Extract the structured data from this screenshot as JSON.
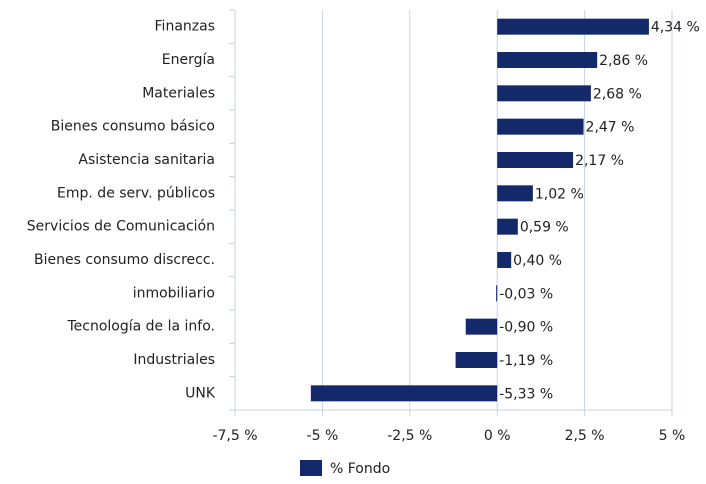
{
  "chart_data": {
    "type": "barh",
    "categories": [
      "Finanzas",
      "Energía",
      "Materiales",
      "Bienes consumo básico",
      "Asistencia sanitaria",
      "Emp. de serv. públicos",
      "Servicios de Comunicación",
      "Bienes consumo discrecc.",
      "inmobiliario",
      "Tecnología de la info.",
      "Industriales",
      "UNK"
    ],
    "series": [
      {
        "name": "% Fondo",
        "color": "#14296a",
        "values": [
          4.34,
          2.86,
          2.68,
          2.47,
          2.17,
          1.02,
          0.59,
          0.4,
          -0.03,
          -0.9,
          -1.19,
          -5.33
        ],
        "value_labels": [
          "4,34 %",
          "2,86 %",
          "2,68 %",
          "2,47 %",
          "2,17 %",
          "1,02 %",
          "0,59 %",
          "0,40 %",
          "-0,03 %",
          "-0,90 %",
          "-1,19 %",
          "-5,33 %"
        ]
      }
    ],
    "xlim": [
      -7.5,
      5
    ],
    "xticks": [
      {
        "value": -7.5,
        "label": "-7,5 %"
      },
      {
        "value": -5,
        "label": "-5 %"
      },
      {
        "value": -2.5,
        "label": "-2,5 %"
      },
      {
        "value": 0,
        "label": "0 %"
      },
      {
        "value": 2.5,
        "label": "2,5 %"
      },
      {
        "value": 5,
        "label": "5 %"
      }
    ],
    "grid": true,
    "legend": "bottom"
  }
}
